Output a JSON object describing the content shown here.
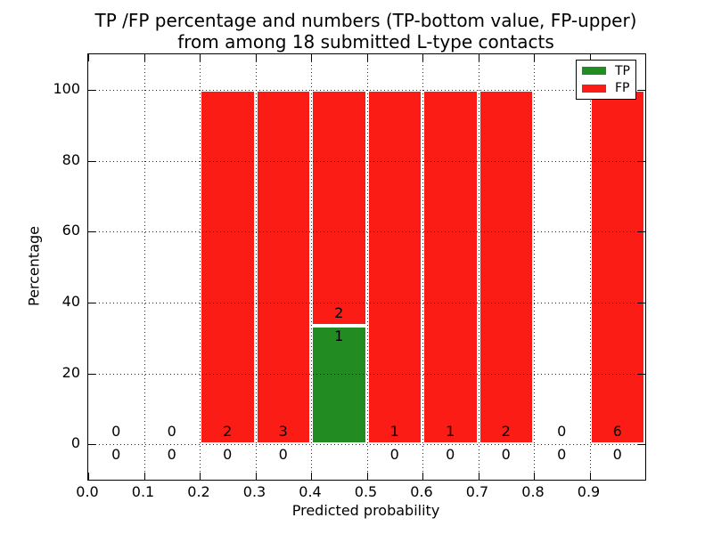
{
  "chart_data": {
    "type": "bar",
    "stacked": true,
    "title_line1": "TP /FP percentage and numbers (TP-bottom value, FP-upper)",
    "title_line2": "from among 18 submitted L-type contacts",
    "title": "TP /FP percentage and numbers (TP-bottom value, FP-upper)\nfrom among 18 submitted L-type contacts",
    "xlabel": "Predicted probability",
    "ylabel": "Percentage",
    "xlim": [
      0,
      1
    ],
    "ylim": [
      -10,
      110
    ],
    "xticks": [
      "0.0",
      "0.1",
      "0.2",
      "0.3",
      "0.4",
      "0.5",
      "0.6",
      "0.7",
      "0.8",
      "0.9"
    ],
    "yticks": [
      0,
      20,
      40,
      60,
      80,
      100
    ],
    "grid": "dotted",
    "total_contacts": 18,
    "colors": {
      "tp": "#228b22",
      "fp": "#fa1c15"
    },
    "legend": {
      "position": "upper right",
      "entries": [
        {
          "label": "TP",
          "color": "#228b22"
        },
        {
          "label": "FP",
          "color": "#fa1c15"
        }
      ]
    },
    "bins": [
      {
        "range": [
          0.0,
          0.1
        ],
        "tp_count": 0,
        "fp_count": 0,
        "tp_pct": 0,
        "fp_pct": 0
      },
      {
        "range": [
          0.1,
          0.2
        ],
        "tp_count": 0,
        "fp_count": 0,
        "tp_pct": 0,
        "fp_pct": 0
      },
      {
        "range": [
          0.2,
          0.3
        ],
        "tp_count": 0,
        "fp_count": 2,
        "tp_pct": 0,
        "fp_pct": 100
      },
      {
        "range": [
          0.3,
          0.4
        ],
        "tp_count": 0,
        "fp_count": 3,
        "tp_pct": 0,
        "fp_pct": 100
      },
      {
        "range": [
          0.4,
          0.5
        ],
        "tp_count": 1,
        "fp_count": 2,
        "tp_pct": 33.33,
        "fp_pct": 66.67
      },
      {
        "range": [
          0.5,
          0.6
        ],
        "tp_count": 0,
        "fp_count": 1,
        "tp_pct": 0,
        "fp_pct": 100
      },
      {
        "range": [
          0.6,
          0.7
        ],
        "tp_count": 0,
        "fp_count": 1,
        "tp_pct": 0,
        "fp_pct": 100
      },
      {
        "range": [
          0.7,
          0.8
        ],
        "tp_count": 0,
        "fp_count": 2,
        "tp_pct": 0,
        "fp_pct": 100
      },
      {
        "range": [
          0.8,
          0.9
        ],
        "tp_count": 0,
        "fp_count": 0,
        "tp_pct": 0,
        "fp_pct": 0
      },
      {
        "range": [
          0.9,
          1.0
        ],
        "tp_count": 0,
        "fp_count": 6,
        "tp_pct": 0,
        "fp_pct": 100
      }
    ]
  }
}
